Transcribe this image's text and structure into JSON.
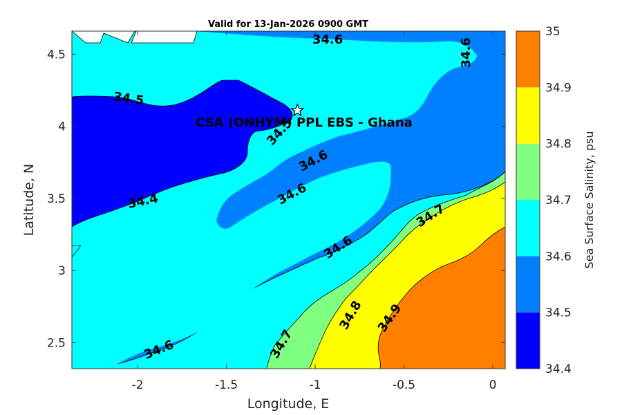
{
  "chart_data": {
    "type": "contour",
    "title": "Valid for 13-Jan-2026 0900 GMT",
    "xlabel": "Longitude, E",
    "ylabel": "Latitude, N",
    "xlim": [
      -2.37,
      0.07
    ],
    "ylim": [
      2.32,
      4.66
    ],
    "x_ticks": [
      -2,
      -1.5,
      -1,
      -0.5,
      0
    ],
    "x_tick_labels": [
      "-2",
      "-1.5",
      "-1",
      "-0.5",
      "0"
    ],
    "y_ticks": [
      2.5,
      3,
      3.5,
      4,
      4.5
    ],
    "y_tick_labels": [
      "2.5",
      "3",
      "3.5",
      "4",
      "4.5"
    ],
    "colorbar": {
      "label": "Sea Surface Salinity, psu",
      "levels": [
        34.4,
        34.5,
        34.6,
        34.7,
        34.8,
        34.9,
        35.0
      ],
      "level_labels": [
        "34.4",
        "34.5",
        "34.6",
        "34.7",
        "34.8",
        "34.9",
        "35"
      ],
      "colors": [
        "#0000ff",
        "#0080ff",
        "#00ffff",
        "#80ff80",
        "#ffff00",
        "#ff8000"
      ]
    },
    "contour_labels": [
      {
        "text": "34.6",
        "lon": -0.93,
        "lat": 4.6,
        "angle": 0
      },
      {
        "text": "34.6",
        "lon": -0.15,
        "lat": 4.51,
        "angle": -90
      },
      {
        "text": "34.5",
        "lon": -2.05,
        "lat": 4.19,
        "angle": 8
      },
      {
        "text": "34.5",
        "lon": -1.2,
        "lat": 3.96,
        "angle": -48
      },
      {
        "text": "34.6",
        "lon": -1.01,
        "lat": 3.76,
        "angle": -28
      },
      {
        "text": "34.4",
        "lon": -1.97,
        "lat": 3.48,
        "angle": -12
      },
      {
        "text": "34.6",
        "lon": -1.13,
        "lat": 3.53,
        "angle": -28
      },
      {
        "text": "34.7",
        "lon": -0.35,
        "lat": 3.38,
        "angle": -33
      },
      {
        "text": "34.6",
        "lon": -0.87,
        "lat": 3.16,
        "angle": -33
      },
      {
        "text": "34.8",
        "lon": -0.8,
        "lat": 2.69,
        "angle": -60
      },
      {
        "text": "34.9",
        "lon": -0.58,
        "lat": 2.67,
        "angle": -55
      },
      {
        "text": "34.7",
        "lon": -1.19,
        "lat": 2.49,
        "angle": -60
      },
      {
        "text": "34.6",
        "lon": -1.88,
        "lat": 2.45,
        "angle": -22
      }
    ],
    "annotation": {
      "text": "CSA (ONHYM) PPL EBS  - Ghana",
      "marker": "star",
      "lon": -1.1,
      "lat": 4.11
    }
  }
}
